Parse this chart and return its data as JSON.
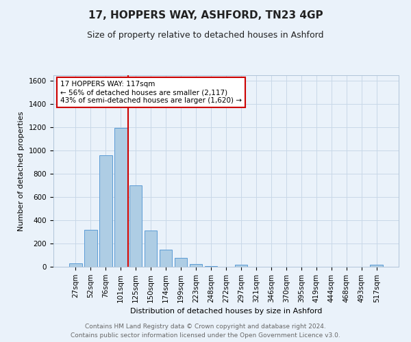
{
  "title": "17, HOPPERS WAY, ASHFORD, TN23 4GP",
  "subtitle": "Size of property relative to detached houses in Ashford",
  "xlabel": "Distribution of detached houses by size in Ashford",
  "ylabel": "Number of detached properties",
  "footer_line1": "Contains HM Land Registry data © Crown copyright and database right 2024.",
  "footer_line2": "Contains public sector information licensed under the Open Government Licence v3.0.",
  "bar_labels": [
    "27sqm",
    "52sqm",
    "76sqm",
    "101sqm",
    "125sqm",
    "150sqm",
    "174sqm",
    "199sqm",
    "223sqm",
    "248sqm",
    "272sqm",
    "297sqm",
    "321sqm",
    "346sqm",
    "370sqm",
    "395sqm",
    "419sqm",
    "444sqm",
    "468sqm",
    "493sqm",
    "517sqm"
  ],
  "bar_values": [
    30,
    320,
    960,
    1195,
    700,
    310,
    150,
    75,
    25,
    5,
    0,
    20,
    0,
    0,
    0,
    0,
    0,
    0,
    0,
    0,
    15
  ],
  "bar_color": "#aecde4",
  "bar_edge_color": "#5b9bd5",
  "vline_color": "#cc0000",
  "vline_pos": 3.5,
  "ylim": [
    0,
    1650
  ],
  "yticks": [
    0,
    200,
    400,
    600,
    800,
    1000,
    1200,
    1400,
    1600
  ],
  "annotation_text": "17 HOPPERS WAY: 117sqm\n← 56% of detached houses are smaller (2,117)\n43% of semi-detached houses are larger (1,620) →",
  "annotation_box_color": "#ffffff",
  "annotation_box_edge_color": "#cc0000",
  "grid_color": "#c8d8e8",
  "bg_color": "#eaf2fa",
  "plot_bg_color": "#eaf2fa",
  "title_fontsize": 11,
  "subtitle_fontsize": 9,
  "ylabel_fontsize": 8,
  "xlabel_fontsize": 8,
  "tick_fontsize": 7.5,
  "annot_fontsize": 7.5,
  "footer_fontsize": 6.5,
  "footer_color": "#666666"
}
